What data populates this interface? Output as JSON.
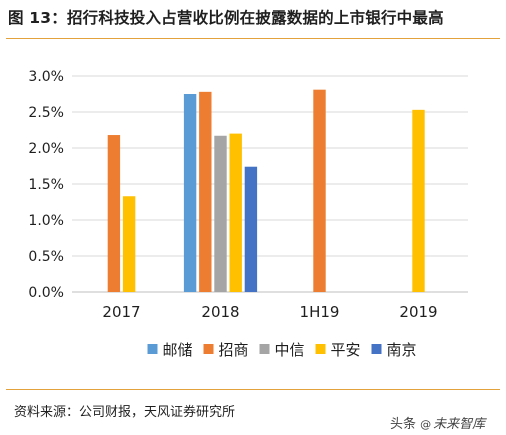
{
  "title": "图 13：招行科技投入占营收比例在披露数据的上市银行中最高",
  "source": "资料来源：公司财报，天风证券研究所",
  "watermark": {
    "prefix": "头条",
    "at": "@",
    "name": "未来智库"
  },
  "colors": {
    "rule": "#e3a23c",
    "grid": "#d9d9d9",
    "axis": "#bfbfbf",
    "text": "#1f1f1f"
  },
  "chart_data": {
    "type": "bar",
    "categories": [
      "2017",
      "2018",
      "1H19",
      "2019"
    ],
    "ylim": [
      0,
      0.03
    ],
    "yticks": [
      0,
      0.005,
      0.01,
      0.015,
      0.02,
      0.025,
      0.03
    ],
    "ytick_labels": [
      "0.0%",
      "0.5%",
      "1.0%",
      "1.5%",
      "2.0%",
      "2.5%",
      "3.0%"
    ],
    "grid": true,
    "legend_position": "bottom",
    "series": [
      {
        "name": "邮储",
        "color": "#5b9bd5",
        "values": [
          null,
          0.0275,
          null,
          null
        ]
      },
      {
        "name": "招商",
        "color": "#ed7d31",
        "values": [
          0.0218,
          0.0278,
          0.0281,
          null
        ]
      },
      {
        "name": "中信",
        "color": "#a5a5a5",
        "values": [
          null,
          0.0217,
          null,
          null
        ]
      },
      {
        "name": "平安",
        "color": "#ffc000",
        "values": [
          0.0133,
          0.022,
          null,
          0.0253
        ]
      },
      {
        "name": "南京",
        "color": "#4472c4",
        "values": [
          null,
          0.0174,
          null,
          null
        ]
      }
    ]
  }
}
